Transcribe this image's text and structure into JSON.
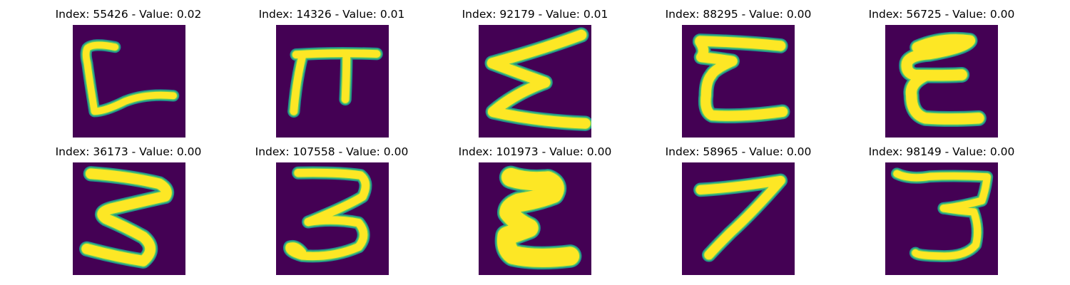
{
  "colors": {
    "background": "#440154",
    "stroke_outer": "#21918c",
    "stroke_mid": "#5ec962",
    "stroke_core": "#fde725"
  },
  "panels": [
    {
      "title": "Index: 55426 - Value: 0.02",
      "glyph": "hook-c"
    },
    {
      "title": "Index: 14326 - Value: 0.01",
      "glyph": "pi"
    },
    {
      "title": "Index: 92179 - Value: 0.01",
      "glyph": "sigma"
    },
    {
      "title": "Index: 88295 - Value: 0.00",
      "glyph": "epsilon-a"
    },
    {
      "title": "Index: 56725 - Value: 0.00",
      "glyph": "epsilon-b"
    },
    {
      "title": "Index: 36173 - Value: 0.00",
      "glyph": "three-a"
    },
    {
      "title": "Index: 107558 - Value: 0.00",
      "glyph": "three-b"
    },
    {
      "title": "Index: 101973 - Value: 0.00",
      "glyph": "epsilon-bold"
    },
    {
      "title": "Index: 58965 - Value: 0.00",
      "glyph": "seven"
    },
    {
      "title": "Index: 98149 - Value: 0.00",
      "glyph": "three-c"
    }
  ]
}
